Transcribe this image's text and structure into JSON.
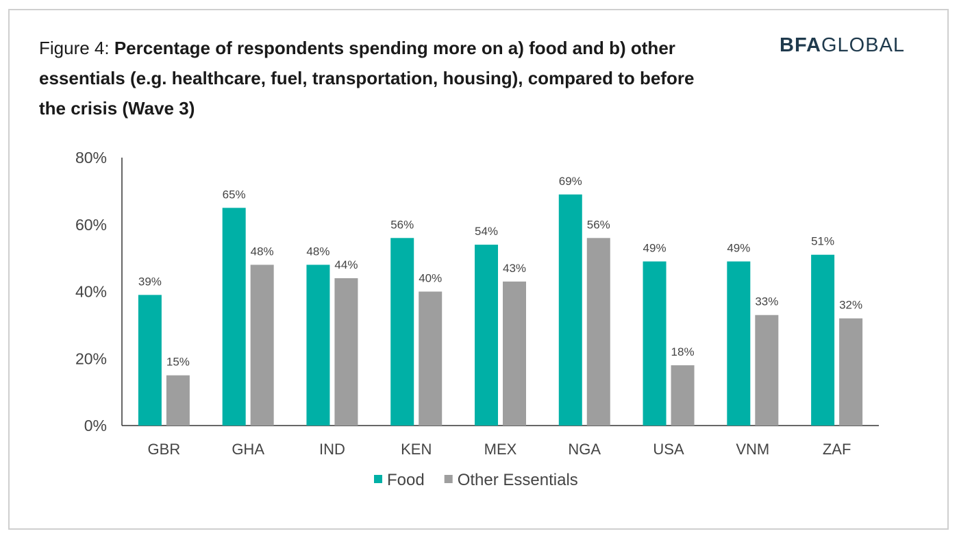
{
  "title": {
    "prefix": "Figure 4: ",
    "main": "Percentage of respondents spending more on a) food and b) other essentials (e.g. healthcare, fuel, transportation, housing), compared to before the crisis (Wave 3)"
  },
  "logo": {
    "bold": "BFA",
    "regular": "GLOBAL",
    "color": "#1f3a4d"
  },
  "chart_data": {
    "type": "bar",
    "categories": [
      "GBR",
      "GHA",
      "IND",
      "KEN",
      "MEX",
      "NGA",
      "USA",
      "VNM",
      "ZAF"
    ],
    "series": [
      {
        "name": "Food",
        "color": "#00b0a6",
        "values": [
          39,
          65,
          48,
          56,
          54,
          69,
          49,
          49,
          51
        ]
      },
      {
        "name": "Other Essentials",
        "color": "#9e9e9e",
        "values": [
          15,
          48,
          44,
          40,
          43,
          56,
          18,
          33,
          32
        ]
      }
    ],
    "ylim": [
      0,
      80
    ],
    "yticks": [
      0,
      20,
      40,
      60,
      80
    ],
    "tick_suffix": "%",
    "grid": false,
    "legend_position": "bottom"
  }
}
